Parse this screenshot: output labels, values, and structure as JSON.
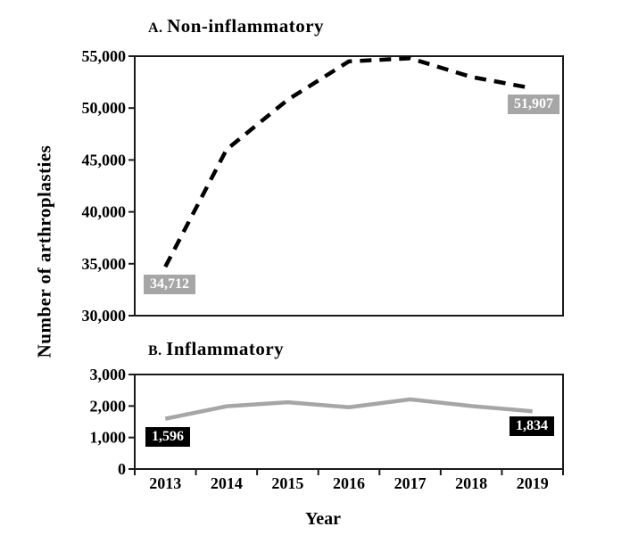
{
  "figure": {
    "y_axis_label": "Number of arthroplasties",
    "x_axis_label": "Year",
    "background": "#ffffff"
  },
  "colors": {
    "non_inflammatory_line": "#000000",
    "inflammatory_line": "#a6a6a6",
    "gray_label_bg": "#a6a6a6",
    "black_label_bg": "#000000",
    "label_text": "#ffffff",
    "axis": "#1a1a1a"
  },
  "chart_data": [
    {
      "type": "line",
      "panel_letter": "A.",
      "title": "Non-inflammatory",
      "categories": [
        "2013",
        "2014",
        "2015",
        "2016",
        "2017",
        "2018",
        "2019"
      ],
      "values": [
        34712,
        46000,
        50800,
        54500,
        54800,
        53000,
        51907
      ],
      "ylim": [
        30000,
        55000
      ],
      "ytick_values": [
        30000,
        35000,
        40000,
        45000,
        50000,
        55000
      ],
      "ytick_labels": [
        "30,000",
        "35,000",
        "40,000",
        "45,000",
        "50,000",
        "55,000"
      ],
      "line_style": "dashed",
      "line_color": "#000000",
      "grid": false,
      "legend": false,
      "annotations": [
        {
          "category": "2013",
          "text": "34,712",
          "bg": "#a6a6a6",
          "color": "#ffffff"
        },
        {
          "category": "2019",
          "text": "51,907",
          "bg": "#a6a6a6",
          "color": "#ffffff"
        }
      ]
    },
    {
      "type": "line",
      "panel_letter": "B.",
      "title": "Inflammatory",
      "categories": [
        "2013",
        "2014",
        "2015",
        "2016",
        "2017",
        "2018",
        "2019"
      ],
      "values": [
        1596,
        1990,
        2120,
        1960,
        2210,
        2000,
        1834
      ],
      "ylim": [
        0,
        3000
      ],
      "ytick_values": [
        0,
        1000,
        2000,
        3000
      ],
      "ytick_labels": [
        "0",
        "1,000",
        "2,000",
        "3,000"
      ],
      "line_style": "solid",
      "line_color": "#a6a6a6",
      "grid": false,
      "legend": false,
      "annotations": [
        {
          "category": "2013",
          "text": "1,596",
          "bg": "#000000",
          "color": "#ffffff"
        },
        {
          "category": "2019",
          "text": "1,834",
          "bg": "#000000",
          "color": "#ffffff"
        }
      ]
    }
  ]
}
